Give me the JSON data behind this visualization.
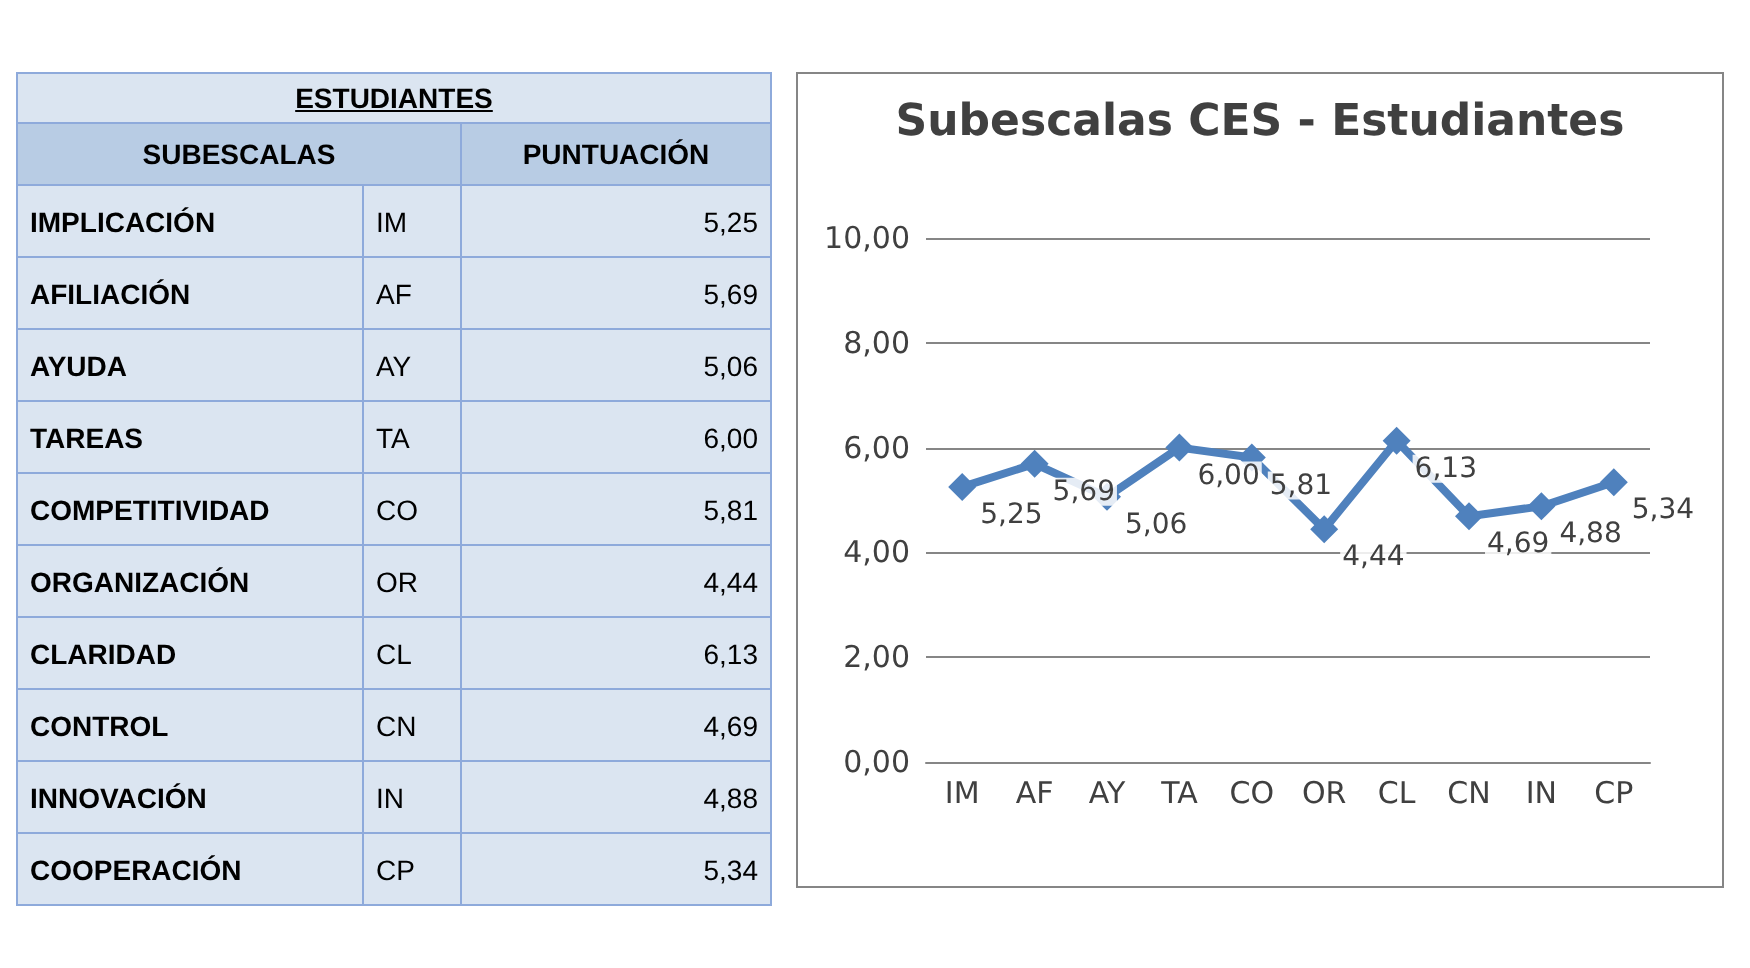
{
  "chart_data": [
    {
      "type": "other",
      "title": "ESTUDIANTES",
      "xlabel": "SUBESCALAS",
      "ylabel": "PUNTUACIÓN",
      "categories": [
        "IMPLICACIÓN",
        "AFILIACIÓN",
        "AYUDA",
        "TAREAS",
        "COMPETITIVIDAD",
        "ORGANIZACIÓN",
        "CLARIDAD",
        "CONTROL",
        "INNOVACIÓN",
        "COOPERACIÓN"
      ],
      "y2_categories": [
        "IM",
        "AF",
        "AY",
        "TA",
        "CO",
        "OR",
        "CL",
        "CN",
        "IN",
        "CP"
      ],
      "value_labels": [
        "5,25",
        "5,69",
        "5,06",
        "6,00",
        "5,81",
        "4,44",
        "6,13",
        "4,69",
        "4,88",
        "5,34"
      ]
    },
    {
      "type": "line",
      "title": "Subescalas CES - Estudiantes",
      "categories": [
        "IM",
        "AF",
        "AY",
        "TA",
        "CO",
        "OR",
        "CL",
        "CN",
        "IN",
        "CP"
      ],
      "series": [
        {
          "color": "#4f81bd",
          "values": [
            5.25,
            5.69,
            5.06,
            6.0,
            5.81,
            4.44,
            6.13,
            4.69,
            4.88,
            5.34
          ],
          "value_labels": [
            "5,25",
            "5,69",
            "5,06",
            "6,00",
            "5,81",
            "4,44",
            "6,13",
            "4,69",
            "4,88",
            "5,34"
          ]
        }
      ],
      "ylim": [
        0,
        10
      ],
      "yticks": [
        {
          "value": 0,
          "label": "0,00"
        },
        {
          "value": 2,
          "label": "2,00"
        },
        {
          "value": 4,
          "label": "4,00"
        },
        {
          "value": 6,
          "label": "6,00"
        },
        {
          "value": 8,
          "label": "8,00"
        },
        {
          "value": 10,
          "label": "10,00"
        }
      ],
      "grid": "y",
      "marker": "diamond",
      "line_style": "solid"
    }
  ]
}
